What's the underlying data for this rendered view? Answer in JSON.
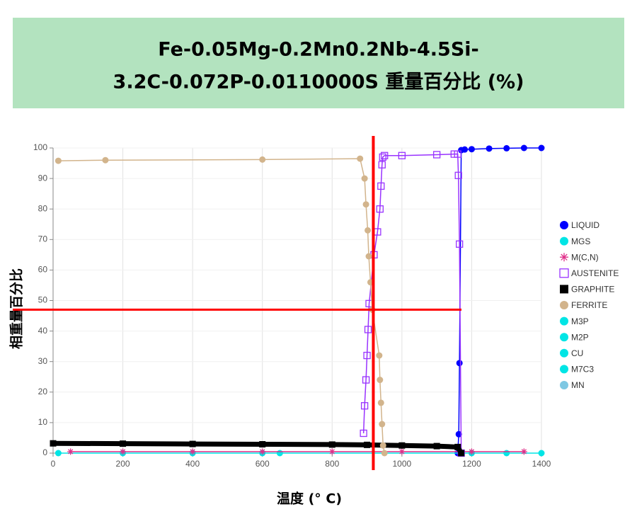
{
  "chart_data": {
    "type": "line",
    "title": [
      "Fe-0.05Mg-0.2Mn0.2Nb-4.5Si-",
      "3.2C-0.072P-0.0110000S  重量百分比 (%)"
    ],
    "x_label": "温度 (°  C)",
    "y_label": "相重量百分比",
    "xlim": [
      0,
      1400
    ],
    "xticks": [
      0,
      200,
      400,
      600,
      800,
      1000,
      1200,
      1400
    ],
    "ylim": [
      0,
      100
    ],
    "yticks": [
      0,
      10,
      20,
      30,
      40,
      50,
      60,
      70,
      80,
      90,
      100
    ],
    "grid": true,
    "legend": "right",
    "crosshair": {
      "x": 918,
      "y": 47,
      "color": "#ff0000"
    },
    "series": [
      {
        "name": "LIQUID",
        "color": "#0000ff",
        "marker": "circle",
        "x": [
          1160,
          1163,
          1165,
          1170,
          1180,
          1200,
          1250,
          1300,
          1350,
          1400
        ],
        "values": [
          0,
          6.2,
          29.5,
          99.3,
          99.5,
          99.6,
          99.8,
          99.9,
          100,
          100
        ]
      },
      {
        "name": "MGS",
        "color": "#00e5e5",
        "marker": "circle",
        "x": [
          15,
          200,
          400,
          600,
          650,
          1200,
          1300,
          1400
        ],
        "values": [
          0,
          0,
          0,
          0,
          0,
          0,
          0,
          0
        ]
      },
      {
        "name": "M(C,N)",
        "color": "#e0308a",
        "marker": "asterisk",
        "x": [
          50,
          200,
          400,
          600,
          800,
          1000,
          1200,
          1350
        ],
        "values": [
          0.5,
          0.5,
          0.5,
          0.5,
          0.5,
          0.5,
          0.5,
          0.5
        ]
      },
      {
        "name": "AUSTENITE",
        "color": "#9933ff",
        "marker": "open-square",
        "x": [
          890,
          893,
          897,
          900,
          903,
          906,
          920,
          930,
          937,
          940,
          943,
          945,
          950,
          1000,
          1100,
          1150,
          1160,
          1162,
          1165,
          1170
        ],
        "values": [
          6.5,
          15.5,
          24,
          32,
          40.5,
          49,
          65,
          72.5,
          80,
          87.5,
          94.5,
          97,
          97.5,
          97.5,
          97.8,
          98,
          98,
          91,
          68.5,
          0
        ]
      },
      {
        "name": "GRAPHITE",
        "color": "#000000",
        "marker": "square",
        "x": [
          0,
          200,
          400,
          600,
          800,
          900,
          1000,
          1100,
          1160,
          1170
        ],
        "values": [
          3.2,
          3.1,
          3,
          2.9,
          2.8,
          2.7,
          2.5,
          2.3,
          2,
          0
        ]
      },
      {
        "name": "FERRITE",
        "color": "#d2b48c",
        "marker": "circle",
        "x": [
          15,
          150,
          600,
          880,
          893,
          897,
          902,
          905,
          910,
          915,
          935,
          937,
          940,
          943,
          946,
          950
        ],
        "values": [
          95.8,
          96,
          96.2,
          96.5,
          90,
          81.5,
          73,
          64.5,
          56,
          47,
          32,
          24,
          16.5,
          9.5,
          2.5,
          0
        ]
      },
      {
        "name": "M3P",
        "color": "#00e5e5",
        "marker": "circle",
        "x": [],
        "values": []
      },
      {
        "name": "M2P",
        "color": "#00e5e5",
        "marker": "circle",
        "x": [],
        "values": []
      },
      {
        "name": "CU",
        "color": "#00e5e5",
        "marker": "circle",
        "x": [],
        "values": []
      },
      {
        "name": "M7C3",
        "color": "#00e5e5",
        "marker": "circle",
        "x": [],
        "values": []
      },
      {
        "name": "MN",
        "color": "#7ec8e3",
        "marker": "circle",
        "x": [],
        "values": []
      }
    ]
  }
}
